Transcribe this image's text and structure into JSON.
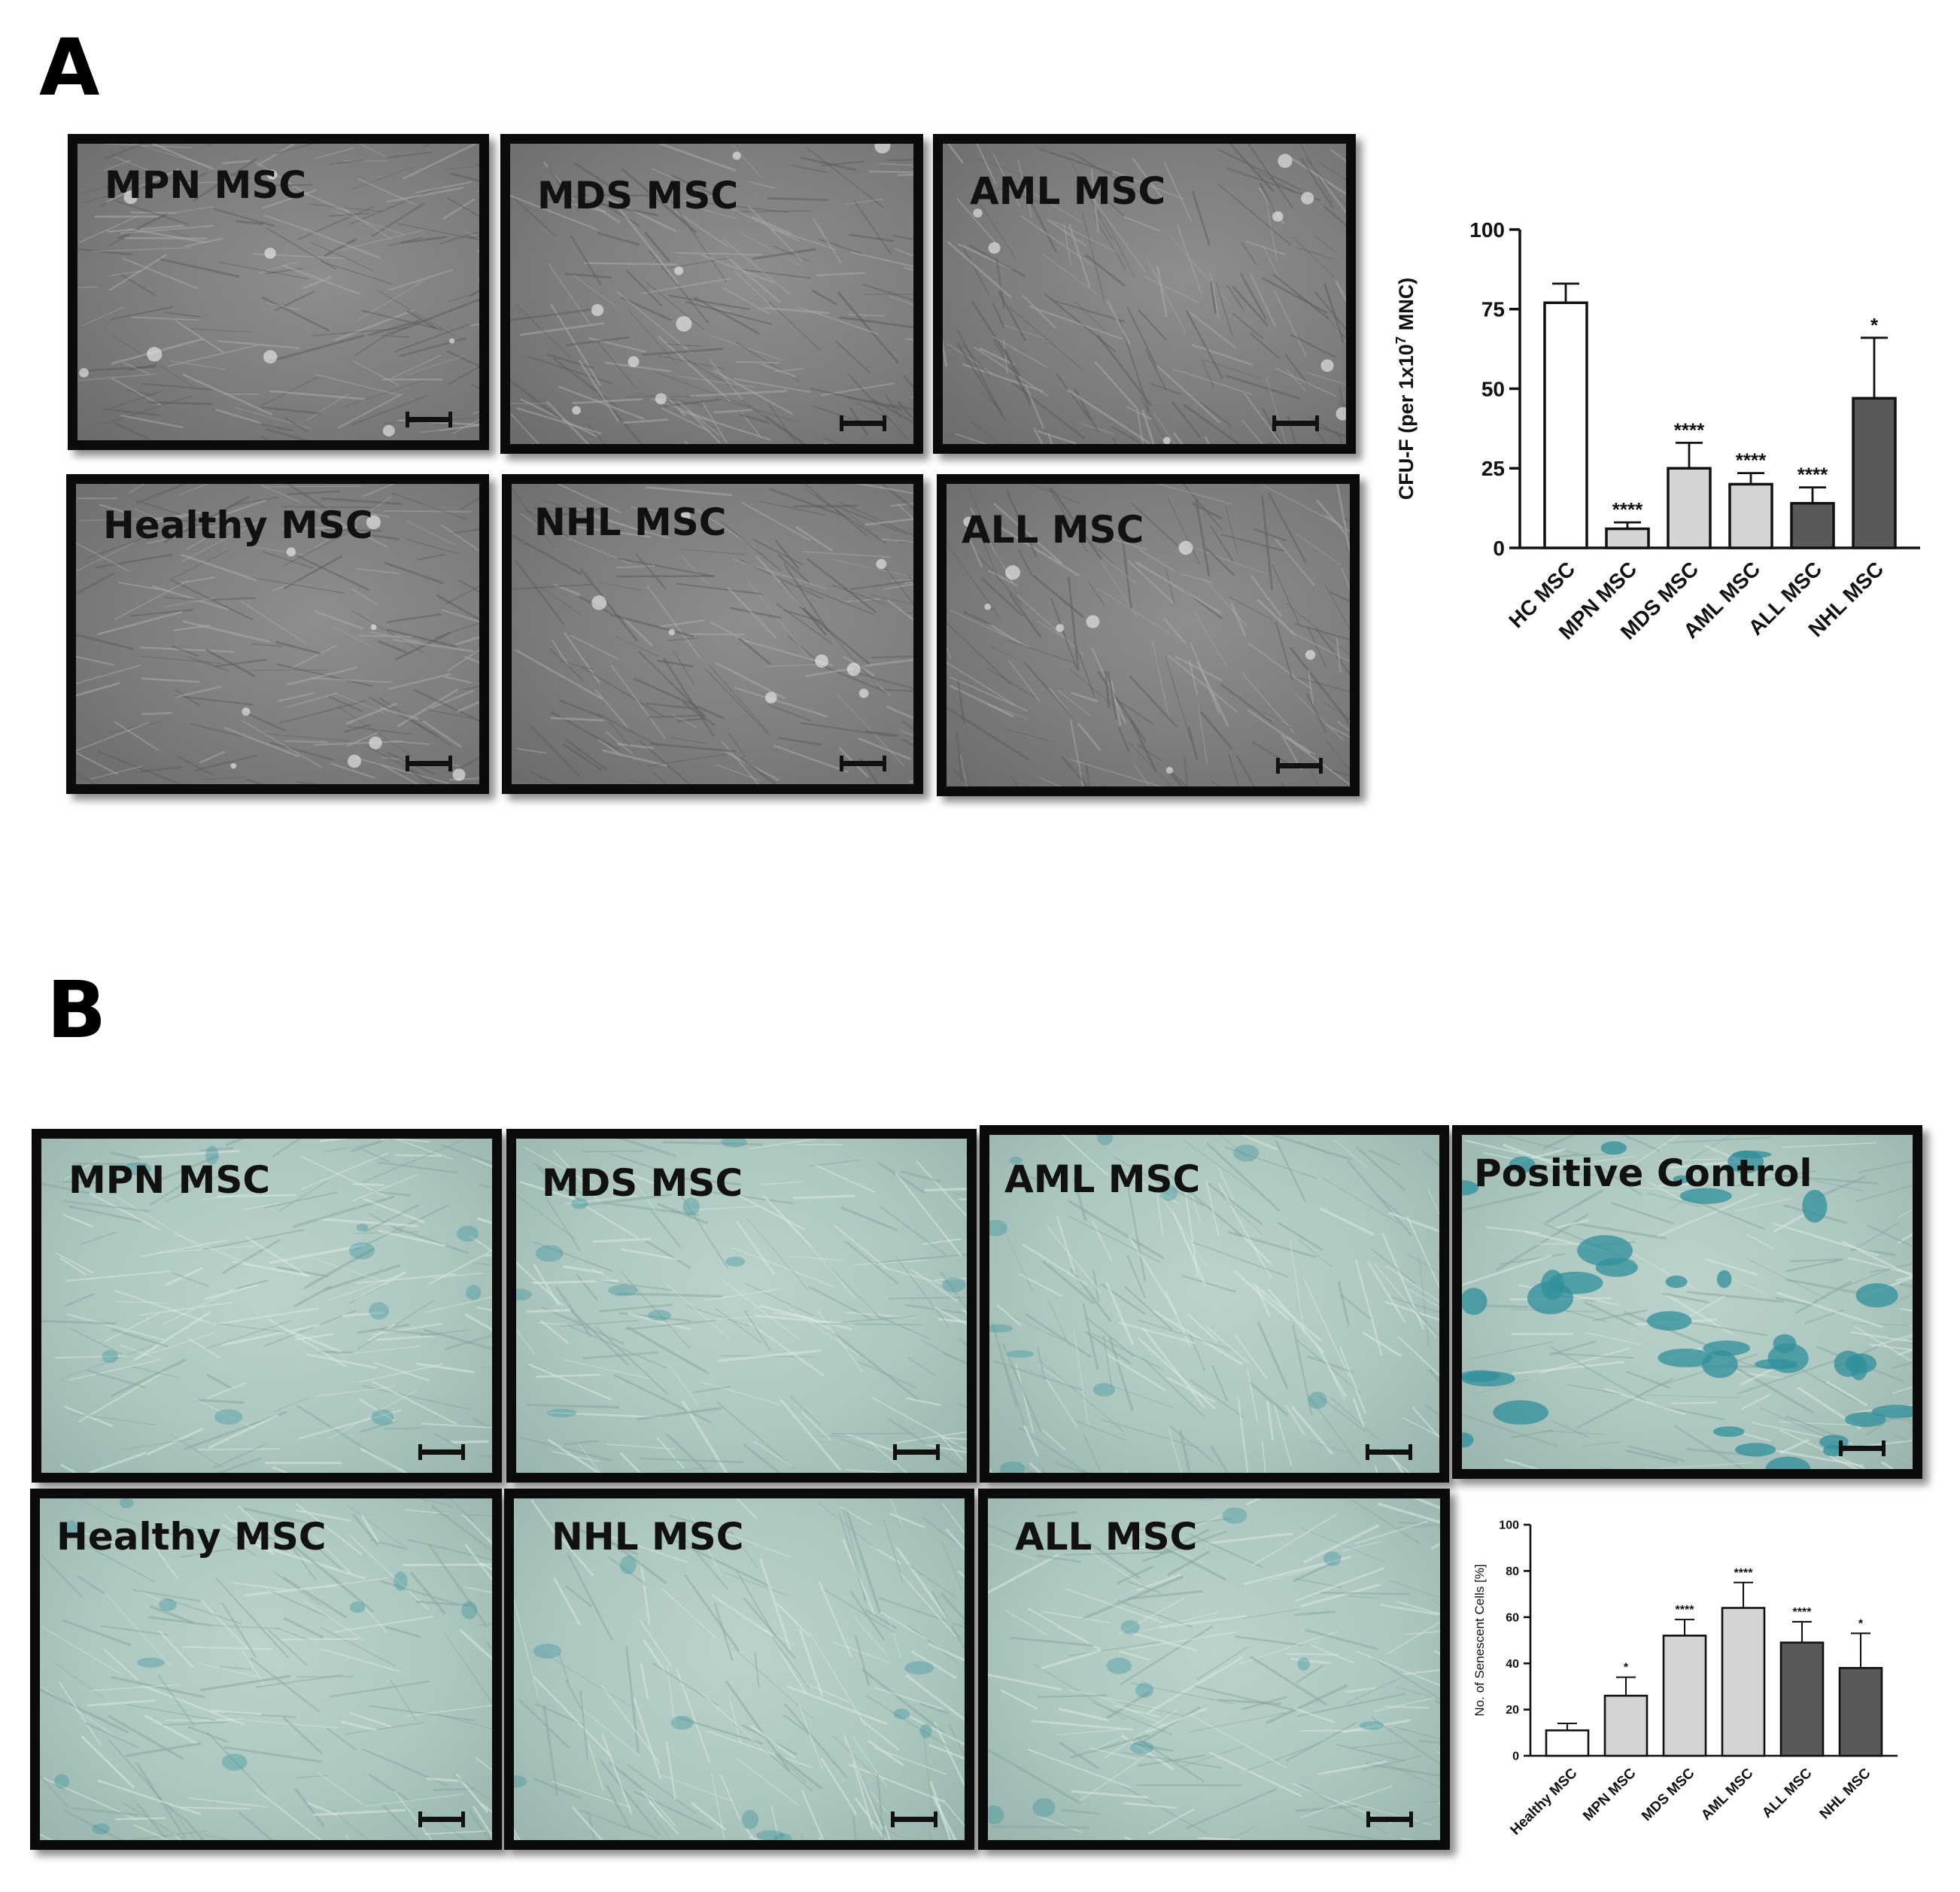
{
  "figure": {
    "panel_a_letter": "A",
    "panel_b_letter": "B",
    "panel_a_images": [
      {
        "label": "MPN MSC"
      },
      {
        "label": "MDS MSC"
      },
      {
        "label": "AML MSC"
      },
      {
        "label": "Healthy MSC"
      },
      {
        "label": "NHL MSC"
      },
      {
        "label": "ALL MSC"
      }
    ],
    "panel_b_images": [
      {
        "label": "MPN MSC"
      },
      {
        "label": "MDS MSC"
      },
      {
        "label": "AML MSC"
      },
      {
        "label": "Positive Control"
      },
      {
        "label": "Healthy MSC"
      },
      {
        "label": "NHL MSC"
      },
      {
        "label": "ALL MSC"
      }
    ]
  },
  "colors": {
    "white_bar": "#ffffff",
    "light_bar": "#d4d4d4",
    "dark_bar": "#595959",
    "stain_blue": "#2f8f9b"
  },
  "chart_data": [
    {
      "type": "bar",
      "ylabel": "CFU-F (per 1x10^7 MNC)",
      "ylabel_parts": {
        "pre": "CFU-F (per 1x10",
        "sup": "7",
        "post": " MNC)"
      },
      "categories": [
        "HC MSC",
        "MPN MSC",
        "MDS MSC",
        "AML MSC",
        "ALL MSC",
        "NHL MSC"
      ],
      "values": [
        77,
        6,
        25,
        20,
        14,
        47
      ],
      "errors": [
        6,
        2,
        8,
        3.5,
        5,
        19
      ],
      "significance": [
        "",
        "****",
        "****",
        "****",
        "****",
        "*"
      ],
      "fills": [
        "white",
        "light",
        "light",
        "light",
        "dark",
        "dark"
      ],
      "ylim": [
        0,
        100
      ],
      "yticks": [
        0,
        25,
        50,
        75,
        100
      ]
    },
    {
      "type": "bar",
      "ylabel": "No. of Senescent Cells [%]",
      "categories": [
        "Healthy MSC",
        "MPN MSC",
        "MDS MSC",
        "AML MSC",
        "ALL MSC",
        "NHL MSC"
      ],
      "values": [
        11,
        26,
        52,
        64,
        49,
        38
      ],
      "errors": [
        3,
        8,
        7,
        11,
        9,
        15
      ],
      "significance": [
        "",
        "*",
        "****",
        "****",
        "****",
        "*"
      ],
      "fills": [
        "white",
        "light",
        "light",
        "light",
        "dark",
        "dark"
      ],
      "ylim": [
        0,
        100
      ],
      "yticks": [
        0,
        20,
        40,
        60,
        80,
        100
      ]
    }
  ]
}
